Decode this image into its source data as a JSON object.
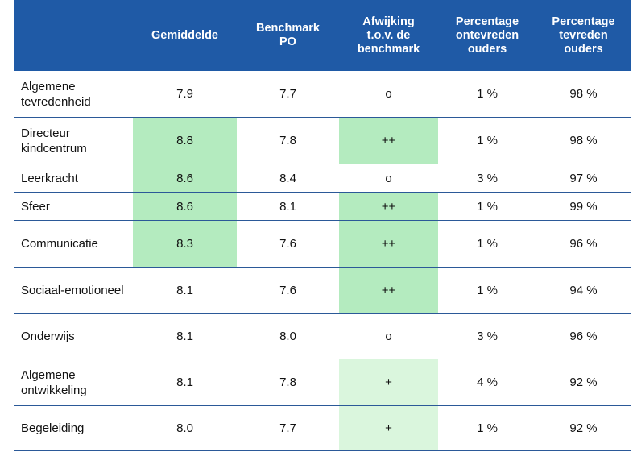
{
  "table": {
    "headers": [
      "",
      "Gemiddelde",
      "Benchmark\nPO",
      "Afwijking\nt.o.v. de\nbenchmark",
      "Percentage\nontevreden\nouders",
      "Percentage\ntevreden\nouders"
    ],
    "rows": [
      {
        "label": "Algemene\ntevredenheid",
        "gemiddelde": "7.9",
        "benchmark": "7.7",
        "afwijking": "o",
        "ontevreden": "1 %",
        "tevreden": "98 %",
        "gem_highlight": "none",
        "afw_highlight": "none"
      },
      {
        "label": "Directeur\nkindcentrum",
        "gemiddelde": "8.8",
        "benchmark": "7.8",
        "afwijking": "++",
        "ontevreden": "1 %",
        "tevreden": "98 %",
        "gem_highlight": "strong",
        "afw_highlight": "strong"
      },
      {
        "label": "Leerkracht",
        "gemiddelde": "8.6",
        "benchmark": "8.4",
        "afwijking": "o",
        "ontevreden": "3 %",
        "tevreden": "97 %",
        "gem_highlight": "strong",
        "afw_highlight": "none"
      },
      {
        "label": "Sfeer",
        "gemiddelde": "8.6",
        "benchmark": "8.1",
        "afwijking": "++",
        "ontevreden": "1 %",
        "tevreden": "99 %",
        "gem_highlight": "strong",
        "afw_highlight": "strong"
      },
      {
        "label": "Communicatie",
        "gemiddelde": "8.3",
        "benchmark": "7.6",
        "afwijking": "++",
        "ontevreden": "1 %",
        "tevreden": "96 %",
        "gem_highlight": "strong",
        "afw_highlight": "strong"
      },
      {
        "label": "Sociaal-emotioneel",
        "gemiddelde": "8.1",
        "benchmark": "7.6",
        "afwijking": "++",
        "ontevreden": "1 %",
        "tevreden": "94 %",
        "gem_highlight": "none",
        "afw_highlight": "strong"
      },
      {
        "label": "Onderwijs",
        "gemiddelde": "8.1",
        "benchmark": "8.0",
        "afwijking": "o",
        "ontevreden": "3 %",
        "tevreden": "96 %",
        "gem_highlight": "none",
        "afw_highlight": "none"
      },
      {
        "label": "Algemene\nontwikkeling",
        "gemiddelde": "8.1",
        "benchmark": "7.8",
        "afwijking": "+",
        "ontevreden": "4 %",
        "tevreden": "92 %",
        "gem_highlight": "none",
        "afw_highlight": "light"
      },
      {
        "label": "Begeleiding",
        "gemiddelde": "8.0",
        "benchmark": "7.7",
        "afwijking": "+",
        "ontevreden": "1 %",
        "tevreden": "92 %",
        "gem_highlight": "none",
        "afw_highlight": "light"
      }
    ]
  },
  "colors": {
    "header_bg": "#1f5aa6",
    "highlight_strong": "#b4ebbf",
    "highlight_light": "#daf6dd",
    "rule": "#2b5998"
  }
}
